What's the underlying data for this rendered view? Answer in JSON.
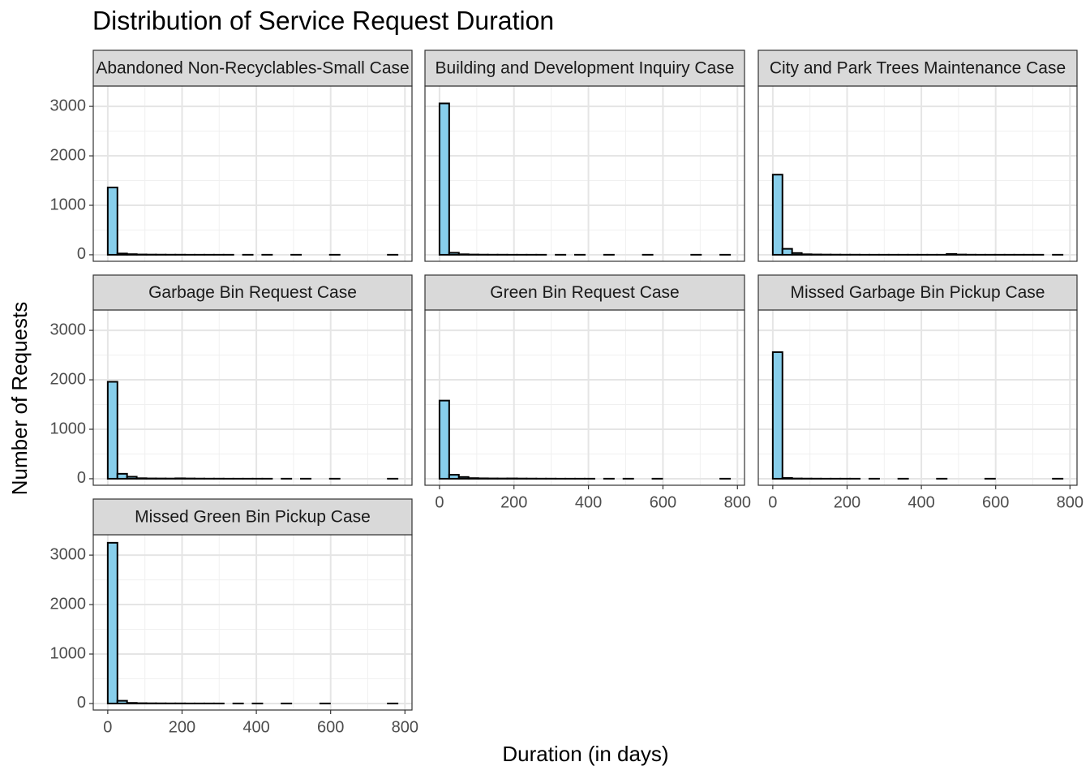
{
  "chart_data": {
    "type": "histogram",
    "title": "Distribution of Service Request Duration",
    "xlabel": "Duration (in days)",
    "ylabel": "Number of Requests",
    "color": "#87ceeb",
    "grid": true,
    "xlim": [
      -39,
      819
    ],
    "xticks": [
      0,
      200,
      400,
      600,
      800
    ],
    "ylim": [
      -132,
      3412
    ],
    "yticks": [
      0,
      1000,
      2000,
      3000
    ],
    "bins": [
      0,
      26,
      52,
      78,
      104,
      130,
      156,
      182,
      208,
      234,
      260,
      286,
      312,
      338,
      364,
      390,
      416,
      442,
      468,
      494,
      520,
      546,
      572,
      598,
      624,
      650,
      676,
      702,
      728,
      754,
      780
    ],
    "panels": [
      {
        "name": "Abandoned Non-Recyclables-Small Case",
        "values": [
          1360,
          25,
          12,
          6,
          4,
          3,
          2,
          2,
          1,
          1,
          1,
          1,
          1,
          0,
          1,
          0,
          1,
          0,
          0,
          1,
          0,
          0,
          0,
          1,
          0,
          0,
          0,
          0,
          0,
          1
        ]
      },
      {
        "name": "Building and Development Inquiry Case",
        "values": [
          3060,
          40,
          10,
          5,
          3,
          2,
          2,
          1,
          1,
          1,
          1,
          0,
          1,
          0,
          1,
          0,
          0,
          1,
          0,
          0,
          0,
          1,
          0,
          0,
          0,
          0,
          1,
          0,
          0,
          1
        ]
      },
      {
        "name": "City and Park Trees Maintenance Case",
        "values": [
          1620,
          120,
          35,
          10,
          6,
          4,
          3,
          2,
          2,
          1,
          1,
          1,
          1,
          1,
          1,
          1,
          1,
          1,
          15,
          5,
          2,
          1,
          1,
          1,
          1,
          1,
          1,
          1,
          0,
          1
        ]
      },
      {
        "name": "Garbage Bin Request Case",
        "values": [
          1960,
          100,
          40,
          10,
          6,
          5,
          4,
          8,
          5,
          3,
          2,
          2,
          1,
          1,
          1,
          1,
          1,
          0,
          1,
          0,
          1,
          0,
          0,
          1,
          0,
          0,
          0,
          0,
          0,
          1
        ]
      },
      {
        "name": "Green Bin Request Case",
        "values": [
          1580,
          80,
          35,
          12,
          8,
          6,
          5,
          6,
          4,
          3,
          2,
          2,
          1,
          1,
          1,
          1,
          0,
          1,
          0,
          1,
          0,
          0,
          1,
          0,
          0,
          0,
          0,
          0,
          0,
          1
        ]
      },
      {
        "name": "Missed Garbage Bin Pickup Case",
        "values": [
          2560,
          15,
          5,
          3,
          2,
          1,
          1,
          1,
          1,
          0,
          1,
          0,
          0,
          1,
          0,
          0,
          0,
          1,
          0,
          0,
          0,
          0,
          1,
          0,
          0,
          0,
          0,
          0,
          0,
          1
        ]
      },
      {
        "name": "Missed Green Bin Pickup Case",
        "values": [
          3250,
          55,
          12,
          6,
          4,
          3,
          2,
          2,
          1,
          1,
          1,
          1,
          0,
          1,
          0,
          1,
          0,
          0,
          1,
          0,
          0,
          0,
          1,
          0,
          0,
          0,
          0,
          0,
          0,
          1
        ]
      }
    ]
  }
}
